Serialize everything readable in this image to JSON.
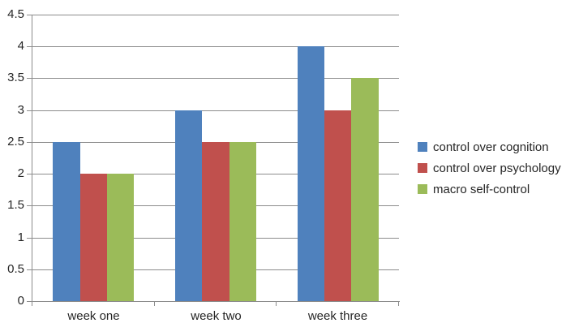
{
  "chart_data": {
    "type": "bar",
    "categories": [
      "week one",
      "week two",
      "week three"
    ],
    "series": [
      {
        "name": "control over cognition",
        "color": "#4F81BD",
        "values": [
          2.5,
          3,
          4
        ]
      },
      {
        "name": "control over psychology",
        "color": "#C0504D",
        "values": [
          2,
          2.5,
          3
        ]
      },
      {
        "name": "macro self-control",
        "color": "#9BBB59",
        "values": [
          2,
          2.5,
          3.5
        ]
      }
    ],
    "ylim": [
      0,
      4.5
    ],
    "ytick_step": 0.5,
    "ytick_labels": [
      "0",
      "0.5",
      "1",
      "1.5",
      "2",
      "2.5",
      "3",
      "3.5",
      "4",
      "4.5"
    ],
    "grid": true,
    "legend_position": "right"
  },
  "colors": {
    "axis": "#8C8C8C",
    "gridline": "#8C8C8C",
    "text": "#262626",
    "background": "#FFFFFF"
  }
}
